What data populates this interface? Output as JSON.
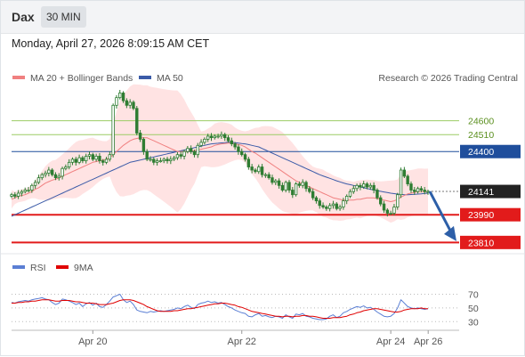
{
  "header": {
    "instrument": "Dax",
    "interval": "30 MIN",
    "datetime": "Monday, April 27, 2026 8:09:15 AM CET"
  },
  "legend": {
    "ma20_label": "MA 20 + Bollinger Bands",
    "ma50_label": "MA 50",
    "copyright": "Research © 2026 Trading Central"
  },
  "rsi_legend": {
    "rsi_label": "RSI",
    "ma_label": "9MA"
  },
  "colors": {
    "candle": "#2e7d32",
    "ma20": "#f08080",
    "band": "#ffe3e3",
    "ma50": "#3b5ba8",
    "green_level": "#9ccc65",
    "blue_level": "#1f4e9c",
    "red_level": "#e21b1b",
    "arrow": "#2d5fa8",
    "rsi": "#5b7fd4",
    "rsi_ma": "#e00000"
  },
  "chart_data": {
    "type": "candlestick",
    "x_ticks": [
      "Apr 20",
      "Apr 22",
      "Apr 24",
      "Apr 26"
    ],
    "ylim": [
      23760,
      24800
    ],
    "levels": [
      {
        "value": 24600,
        "label": "24600",
        "kind": "resistance"
      },
      {
        "value": 24510,
        "label": "24510",
        "kind": "resistance"
      },
      {
        "value": 24400,
        "label": "24400",
        "kind": "pivot"
      },
      {
        "value": 24141,
        "label": "24141",
        "kind": "last"
      },
      {
        "value": 23990,
        "label": "23990",
        "kind": "support"
      },
      {
        "value": 23810,
        "label": "23810",
        "kind": "support"
      }
    ],
    "close": [
      24120,
      24110,
      24130,
      24140,
      24150,
      24150,
      24180,
      24200,
      24230,
      24250,
      24260,
      24280,
      24250,
      24230,
      24240,
      24290,
      24300,
      24330,
      24350,
      24330,
      24360,
      24340,
      24370,
      24380,
      24350,
      24370,
      24340,
      24330,
      24350,
      24380,
      24700,
      24750,
      24780,
      24730,
      24700,
      24720,
      24680,
      24520,
      24480,
      24400,
      24350,
      24350,
      24330,
      24340,
      24340,
      24350,
      24340,
      24350,
      24360,
      24380,
      24370,
      24400,
      24420,
      24400,
      24380,
      24440,
      24460,
      24480,
      24500,
      24490,
      24500,
      24500,
      24510,
      24490,
      24470,
      24450,
      24430,
      24400,
      24380,
      24350,
      24300,
      24280,
      24270,
      24300,
      24250,
      24250,
      24230,
      24200,
      24210,
      24180,
      24150,
      24200,
      24150,
      24120,
      24190,
      24180,
      24200,
      24160,
      24140,
      24100,
      24080,
      24050,
      24040,
      24030,
      24050,
      24060,
      24030,
      24040,
      24080,
      24110,
      24140,
      24160,
      24180,
      24170,
      24190,
      24170,
      24180,
      24150,
      24100,
      24060,
      24020,
      24000,
      24000,
      24040,
      24120,
      24280,
      24240,
      24190,
      24150,
      24140,
      24160,
      24150,
      24140,
      24141
    ],
    "ma20": [
      24090,
      24100,
      24110,
      24115,
      24120,
      24130,
      24140,
      24155,
      24165,
      24180,
      24195,
      24205,
      24215,
      24220,
      24230,
      24240,
      24250,
      24260,
      24270,
      24280,
      24290,
      24300,
      24310,
      24320,
      24330,
      24335,
      24340,
      24345,
      24350,
      24360,
      24380,
      24400,
      24420,
      24440,
      24455,
      24470,
      24480,
      24485,
      24490,
      24490,
      24490,
      24480,
      24470,
      24460,
      24450,
      24440,
      24430,
      24420,
      24410,
      24400,
      24400,
      24400,
      24400,
      24405,
      24405,
      24410,
      24415,
      24420,
      24425,
      24430,
      24440,
      24445,
      24450,
      24452,
      24455,
      24455,
      24450,
      24445,
      24440,
      24430,
      24415,
      24400,
      24390,
      24375,
      24360,
      24345,
      24330,
      24315,
      24300,
      24285,
      24270,
      24255,
      24240,
      24225,
      24210,
      24200,
      24190,
      24180,
      24170,
      24160,
      24150,
      24140,
      24130,
      24120,
      24110,
      24100,
      24095,
      24090,
      24085,
      24085,
      24085,
      24085,
      24090,
      24090,
      24095,
      24100,
      24100,
      24100,
      24095,
      24090,
      24085,
      24080,
      24075,
      24080,
      24090,
      24105,
      24115,
      24125,
      24130,
      24135,
      24140,
      24140,
      24140,
      24141
    ],
    "ma50": [
      23980,
      23990,
      24000,
      24010,
      24020,
      24030,
      24040,
      24050,
      24060,
      24070,
      24080,
      24090,
      24100,
      24110,
      24120,
      24130,
      24140,
      24150,
      24160,
      24170,
      24180,
      24190,
      24200,
      24210,
      24220,
      24230,
      24240,
      24250,
      24260,
      24270,
      24280,
      24290,
      24300,
      24310,
      24320,
      24330,
      24335,
      24340,
      24345,
      24350,
      24355,
      24360,
      24365,
      24370,
      24375,
      24380,
      24385,
      24390,
      24395,
      24400,
      24405,
      24410,
      24415,
      24420,
      24425,
      24430,
      24435,
      24440,
      24445,
      24450,
      24452,
      24454,
      24456,
      24458,
      24460,
      24460,
      24458,
      24455,
      24452,
      24450,
      24445,
      24440,
      24435,
      24430,
      24420,
      24410,
      24400,
      24390,
      24380,
      24370,
      24360,
      24350,
      24340,
      24330,
      24320,
      24310,
      24300,
      24290,
      24280,
      24270,
      24260,
      24250,
      24242,
      24234,
      24226,
      24218,
      24210,
      24203,
      24196,
      24190,
      24185,
      24180,
      24175,
      24170,
      24165,
      24160,
      24155,
      24150,
      24146,
      24142,
      24138,
      24134,
      24130,
      24127,
      24124,
      24122,
      24120,
      24120,
      24121,
      24122,
      24124,
      24126,
      24128,
      24130
    ],
    "rsi_ticks": [
      70,
      50,
      30
    ],
    "rsi_ylim": [
      20,
      85
    ],
    "rsi": [
      58,
      57,
      59,
      60,
      61,
      60,
      62,
      63,
      64,
      65,
      63,
      62,
      58,
      55,
      57,
      63,
      62,
      60,
      58,
      55,
      57,
      52,
      56,
      58,
      54,
      57,
      52,
      51,
      55,
      60,
      66,
      68,
      70,
      62,
      58,
      60,
      55,
      47,
      45,
      44,
      43,
      45,
      44,
      45,
      46,
      45,
      46,
      47,
      48,
      50,
      49,
      52,
      54,
      51,
      49,
      55,
      57,
      58,
      60,
      58,
      59,
      57,
      58,
      55,
      52,
      50,
      47,
      45,
      43,
      42,
      38,
      37,
      40,
      42,
      38,
      39,
      37,
      36,
      38,
      37,
      35,
      40,
      37,
      35,
      41,
      40,
      42,
      38,
      37,
      35,
      34,
      33,
      33,
      34,
      38,
      40,
      36,
      38,
      43,
      45,
      48,
      50,
      52,
      51,
      53,
      50,
      51,
      48,
      44,
      41,
      38,
      37,
      38,
      42,
      50,
      62,
      57,
      52,
      50,
      49,
      50,
      49,
      48,
      49
    ],
    "rsi_ma": [
      57,
      57,
      58,
      58,
      59,
      59,
      60,
      60,
      61,
      62,
      62,
      62,
      61,
      60,
      60,
      61,
      61,
      61,
      60,
      59,
      59,
      58,
      57,
      57,
      57,
      56,
      55,
      55,
      55,
      56,
      57,
      59,
      61,
      62,
      62,
      62,
      61,
      59,
      57,
      55,
      52,
      50,
      48,
      46,
      45,
      45,
      45,
      45,
      46,
      46,
      47,
      48,
      49,
      49,
      50,
      51,
      52,
      53,
      54,
      55,
      56,
      56,
      57,
      57,
      56,
      55,
      54,
      52,
      51,
      49,
      47,
      45,
      44,
      43,
      42,
      41,
      40,
      39,
      38,
      38,
      37,
      38,
      38,
      37,
      38,
      38,
      39,
      39,
      38,
      38,
      37,
      36,
      35,
      35,
      35,
      36,
      36,
      36,
      37,
      38,
      40,
      41,
      43,
      44,
      46,
      47,
      48,
      49,
      49,
      48,
      47,
      46,
      45,
      44,
      44,
      45,
      47,
      48,
      49,
      49,
      49,
      50,
      49,
      49
    ]
  }
}
